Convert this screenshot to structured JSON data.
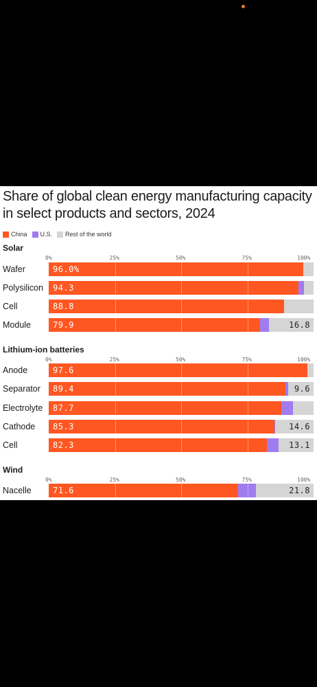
{
  "chart_data": {
    "type": "bar",
    "stacked": true,
    "orientation": "horizontal",
    "title": "Share of global clean energy manufacturing capacity in select products and sectors, 2024",
    "legend": [
      {
        "name": "China",
        "color": "#ff5722"
      },
      {
        "name": "U.S.",
        "color": "#a07cf0"
      },
      {
        "name": "Rest of the world",
        "color": "#d5d5d5"
      }
    ],
    "legend_placement": "top-left",
    "xlim": [
      0,
      100
    ],
    "ticks": [
      "0%",
      "25%",
      "50%",
      "75%",
      "100%"
    ],
    "sections": [
      {
        "name": "Solar",
        "rows": [
          {
            "label": "Wafer",
            "china": 96.0,
            "us": 0.0,
            "rest": 4.0,
            "china_label": "96.0%",
            "rest_label": ""
          },
          {
            "label": "Polysilicon",
            "china": 94.3,
            "us": 2.0,
            "rest": 3.7,
            "china_label": "94.3",
            "rest_label": ""
          },
          {
            "label": "Cell",
            "china": 88.8,
            "us": 0.0,
            "rest": 11.2,
            "china_label": "88.8",
            "rest_label": ""
          },
          {
            "label": "Module",
            "china": 79.9,
            "us": 3.3,
            "rest": 16.8,
            "china_label": "79.9",
            "rest_label": "16.8"
          }
        ]
      },
      {
        "name": "Lithium-ion batteries",
        "rows": [
          {
            "label": "Anode",
            "china": 97.6,
            "us": 0.0,
            "rest": 2.4,
            "china_label": "97.6",
            "rest_label": ""
          },
          {
            "label": "Separator",
            "china": 89.4,
            "us": 1.0,
            "rest": 9.6,
            "china_label": "89.4",
            "rest_label": "9.6"
          },
          {
            "label": "Electrolyte",
            "china": 87.7,
            "us": 4.5,
            "rest": 7.8,
            "china_label": "87.7",
            "rest_label": ""
          },
          {
            "label": "Cathode",
            "china": 85.3,
            "us": 0.1,
            "rest": 14.6,
            "china_label": "85.3",
            "rest_label": "14.6"
          },
          {
            "label": "Cell",
            "china": 82.3,
            "us": 4.6,
            "rest": 13.1,
            "china_label": "82.3",
            "rest_label": "13.1"
          }
        ]
      },
      {
        "name": "Wind",
        "rows": [
          {
            "label": "Nacelle",
            "china": 71.6,
            "us": 6.6,
            "rest": 21.8,
            "china_label": "71.6",
            "rest_label": "21.8"
          }
        ]
      }
    ]
  }
}
